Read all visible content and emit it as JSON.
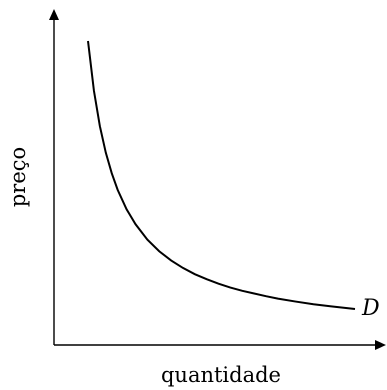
{
  "chart_data": {
    "type": "line",
    "xlabel": "quantidade",
    "ylabel": "preço",
    "series": [
      {
        "name": "D",
        "x": [
          1.0,
          1.2,
          1.4,
          1.6,
          1.8,
          2.0,
          2.3,
          2.6,
          3.0,
          3.4,
          3.8,
          4.2,
          4.6,
          5.0,
          5.4,
          5.8,
          6.2,
          6.6,
          7.0,
          7.4,
          8.0,
          8.6,
          9.2,
          10.0
        ],
        "y": [
          10.0,
          8.33,
          7.14,
          6.25,
          5.56,
          5.0,
          4.35,
          3.85,
          3.33,
          2.94,
          2.63,
          2.38,
          2.17,
          2.0,
          1.85,
          1.72,
          1.61,
          1.52,
          1.43,
          1.35,
          1.25,
          1.16,
          1.09,
          1.0
        ]
      }
    ],
    "grid": false,
    "legend": "none"
  }
}
